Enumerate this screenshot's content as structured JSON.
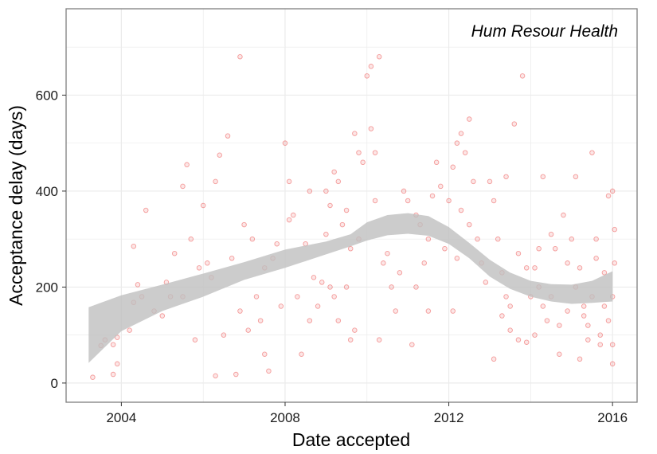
{
  "chart_data": {
    "type": "scatter",
    "title": "",
    "annotation": "Hum Resour Health",
    "xlabel": "Date accepted",
    "ylabel": "Acceptance delay (days)",
    "x_ticks": [
      {
        "x": 2004,
        "label": "2004"
      },
      {
        "x": 2008,
        "label": "2008"
      },
      {
        "x": 2012,
        "label": "2012"
      },
      {
        "x": 2016,
        "label": "2016"
      }
    ],
    "y_ticks": [
      {
        "y": 0,
        "label": "0"
      },
      {
        "y": 200,
        "label": "200"
      },
      {
        "y": 400,
        "label": "400"
      },
      {
        "y": 600,
        "label": "600"
      }
    ],
    "xlim": [
      2002.65,
      2016.6
    ],
    "ylim": [
      -40,
      780
    ],
    "grid": true,
    "colors": {
      "points": "#e8312f",
      "band": "#bfbfbf",
      "grid": "#ebebeb",
      "border": "#7f7f7f"
    },
    "smooth_band": {
      "x": [
        2003.2,
        2004,
        2005,
        2006,
        2007,
        2008,
        2009,
        2009.6,
        2010,
        2010.5,
        2011,
        2011.5,
        2012,
        2012.5,
        2013,
        2013.5,
        2014,
        2014.5,
        2015,
        2015.5,
        2016
      ],
      "lower": [
        42,
        108,
        150,
        180,
        215,
        240,
        268,
        285,
        297,
        308,
        311,
        307,
        290,
        260,
        222,
        196,
        180,
        170,
        165,
        167,
        170
      ],
      "upper": [
        158,
        183,
        205,
        228,
        252,
        278,
        295,
        310,
        335,
        350,
        354,
        348,
        325,
        292,
        257,
        230,
        213,
        206,
        205,
        213,
        233
      ]
    },
    "points": [
      [
        2003.3,
        12
      ],
      [
        2003.5,
        78
      ],
      [
        2003.8,
        18
      ],
      [
        2003.9,
        40
      ],
      [
        2003.8,
        80
      ],
      [
        2003.6,
        90
      ],
      [
        2003.9,
        95
      ],
      [
        2004.2,
        110
      ],
      [
        2004.3,
        168
      ],
      [
        2004.4,
        205
      ],
      [
        2004.5,
        180
      ],
      [
        2004.6,
        360
      ],
      [
        2004.3,
        285
      ],
      [
        2004.8,
        150
      ],
      [
        2005.0,
        140
      ],
      [
        2005.1,
        210
      ],
      [
        2005.3,
        270
      ],
      [
        2005.5,
        180
      ],
      [
        2005.7,
        300
      ],
      [
        2005.6,
        455
      ],
      [
        2005.9,
        240
      ],
      [
        2005.8,
        90
      ],
      [
        2005.5,
        410
      ],
      [
        2005.2,
        180
      ],
      [
        2006.1,
        250
      ],
      [
        2006.2,
        220
      ],
      [
        2006.3,
        420
      ],
      [
        2006.4,
        475
      ],
      [
        2006.6,
        515
      ],
      [
        2006.7,
        260
      ],
      [
        2006.9,
        150
      ],
      [
        2006.5,
        100
      ],
      [
        2006.8,
        18
      ],
      [
        2006.3,
        15
      ],
      [
        2006.0,
        370
      ],
      [
        2006.9,
        680
      ],
      [
        2007.0,
        330
      ],
      [
        2007.2,
        300
      ],
      [
        2007.3,
        180
      ],
      [
        2007.4,
        130
      ],
      [
        2007.5,
        60
      ],
      [
        2007.6,
        25
      ],
      [
        2007.7,
        260
      ],
      [
        2007.8,
        290
      ],
      [
        2007.9,
        160
      ],
      [
        2007.1,
        110
      ],
      [
        2007.5,
        240
      ],
      [
        2008.0,
        500
      ],
      [
        2008.1,
        340
      ],
      [
        2008.2,
        350
      ],
      [
        2008.3,
        180
      ],
      [
        2008.5,
        290
      ],
      [
        2008.6,
        400
      ],
      [
        2008.7,
        220
      ],
      [
        2008.9,
        210
      ],
      [
        2008.8,
        160
      ],
      [
        2008.4,
        60
      ],
      [
        2008.6,
        130
      ],
      [
        2008.1,
        420
      ],
      [
        2009.0,
        400
      ],
      [
        2009.1,
        370
      ],
      [
        2009.2,
        440
      ],
      [
        2009.3,
        420
      ],
      [
        2009.1,
        200
      ],
      [
        2009.2,
        180
      ],
      [
        2009.3,
        130
      ],
      [
        2009.4,
        330
      ],
      [
        2009.5,
        360
      ],
      [
        2009.6,
        280
      ],
      [
        2009.7,
        520
      ],
      [
        2009.8,
        480
      ],
      [
        2009.9,
        460
      ],
      [
        2009.6,
        90
      ],
      [
        2009.7,
        110
      ],
      [
        2009.5,
        200
      ],
      [
        2009.8,
        300
      ],
      [
        2009.0,
        310
      ],
      [
        2010.0,
        640
      ],
      [
        2010.1,
        660
      ],
      [
        2010.3,
        680
      ],
      [
        2010.2,
        480
      ],
      [
        2010.1,
        530
      ],
      [
        2010.4,
        250
      ],
      [
        2010.5,
        270
      ],
      [
        2010.6,
        200
      ],
      [
        2010.7,
        150
      ],
      [
        2010.3,
        90
      ],
      [
        2010.8,
        230
      ],
      [
        2010.9,
        400
      ],
      [
        2010.2,
        380
      ],
      [
        2011.0,
        380
      ],
      [
        2011.1,
        80
      ],
      [
        2011.2,
        350
      ],
      [
        2011.3,
        330
      ],
      [
        2011.4,
        250
      ],
      [
        2011.5,
        300
      ],
      [
        2011.6,
        390
      ],
      [
        2011.7,
        460
      ],
      [
        2011.8,
        410
      ],
      [
        2011.9,
        280
      ],
      [
        2011.2,
        200
      ],
      [
        2011.5,
        150
      ],
      [
        2012.0,
        380
      ],
      [
        2012.1,
        450
      ],
      [
        2012.2,
        500
      ],
      [
        2012.3,
        520
      ],
      [
        2012.4,
        480
      ],
      [
        2012.5,
        550
      ],
      [
        2012.6,
        420
      ],
      [
        2012.7,
        300
      ],
      [
        2012.8,
        250
      ],
      [
        2012.9,
        210
      ],
      [
        2012.1,
        150
      ],
      [
        2012.3,
        360
      ],
      [
        2012.5,
        330
      ],
      [
        2012.2,
        260
      ],
      [
        2013.0,
        420
      ],
      [
        2013.1,
        380
      ],
      [
        2013.2,
        300
      ],
      [
        2013.3,
        230
      ],
      [
        2013.4,
        180
      ],
      [
        2013.5,
        160
      ],
      [
        2013.6,
        540
      ],
      [
        2013.7,
        270
      ],
      [
        2013.8,
        640
      ],
      [
        2013.9,
        240
      ],
      [
        2013.1,
        50
      ],
      [
        2013.3,
        140
      ],
      [
        2013.5,
        110
      ],
      [
        2013.7,
        90
      ],
      [
        2013.9,
        85
      ],
      [
        2013.4,
        430
      ],
      [
        2014.0,
        180
      ],
      [
        2014.1,
        240
      ],
      [
        2014.2,
        200
      ],
      [
        2014.3,
        160
      ],
      [
        2014.4,
        130
      ],
      [
        2014.5,
        310
      ],
      [
        2014.6,
        280
      ],
      [
        2014.7,
        60
      ],
      [
        2014.8,
        350
      ],
      [
        2014.9,
        250
      ],
      [
        2014.1,
        100
      ],
      [
        2014.3,
        430
      ],
      [
        2014.5,
        180
      ],
      [
        2014.7,
        120
      ],
      [
        2014.2,
        280
      ],
      [
        2014.9,
        150
      ],
      [
        2015.0,
        300
      ],
      [
        2015.1,
        200
      ],
      [
        2015.2,
        240
      ],
      [
        2015.3,
        160
      ],
      [
        2015.4,
        120
      ],
      [
        2015.5,
        180
      ],
      [
        2015.6,
        260
      ],
      [
        2015.7,
        100
      ],
      [
        2015.8,
        230
      ],
      [
        2015.9,
        390
      ],
      [
        2015.1,
        430
      ],
      [
        2015.3,
        140
      ],
      [
        2015.5,
        480
      ],
      [
        2015.7,
        80
      ],
      [
        2015.2,
        50
      ],
      [
        2015.4,
        90
      ],
      [
        2015.6,
        300
      ],
      [
        2015.8,
        160
      ],
      [
        2015.9,
        130
      ],
      [
        2016.0,
        400
      ],
      [
        2016.05,
        250
      ],
      [
        2016.0,
        80
      ],
      [
        2016.0,
        40
      ],
      [
        2016.05,
        320
      ],
      [
        2016.0,
        180
      ]
    ]
  }
}
